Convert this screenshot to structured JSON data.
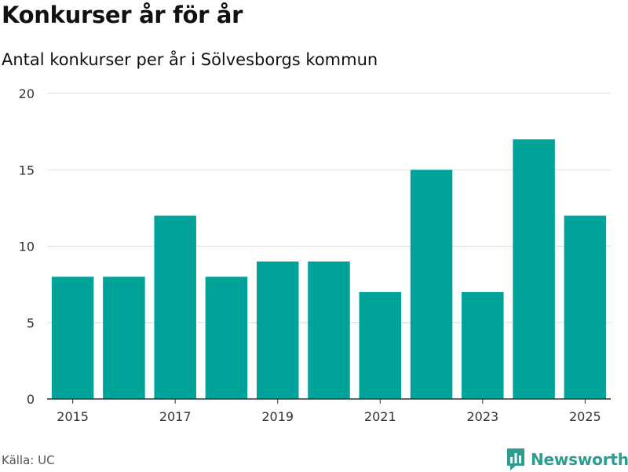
{
  "header": {
    "title": "Konkurser år för år",
    "subtitle": "Antal konkurser per år i Sölvesborgs kommun"
  },
  "footer": {
    "source": "Källa: UC",
    "brand": "Newsworthy"
  },
  "colors": {
    "bar": "#00a39a",
    "grid": "#dddddd",
    "axis": "#333333",
    "brand": "#2f9c92"
  },
  "chart_data": {
    "type": "bar",
    "title": "Konkurser år för år",
    "subtitle": "Antal konkurser per år i Sölvesborgs kommun",
    "xlabel": "",
    "ylabel": "",
    "categories": [
      "2015",
      "2016",
      "2017",
      "2018",
      "2019",
      "2020",
      "2021",
      "2022",
      "2023",
      "2024",
      "2025"
    ],
    "values": [
      8,
      8,
      12,
      8,
      9,
      9,
      7,
      15,
      7,
      17,
      12
    ],
    "x_tick_labels": [
      "2015",
      "2017",
      "2019",
      "2021",
      "2023",
      "2025"
    ],
    "y_ticks": [
      0,
      5,
      10,
      15,
      20
    ],
    "ylim": [
      0,
      20
    ],
    "grid": true,
    "legend": "none"
  }
}
